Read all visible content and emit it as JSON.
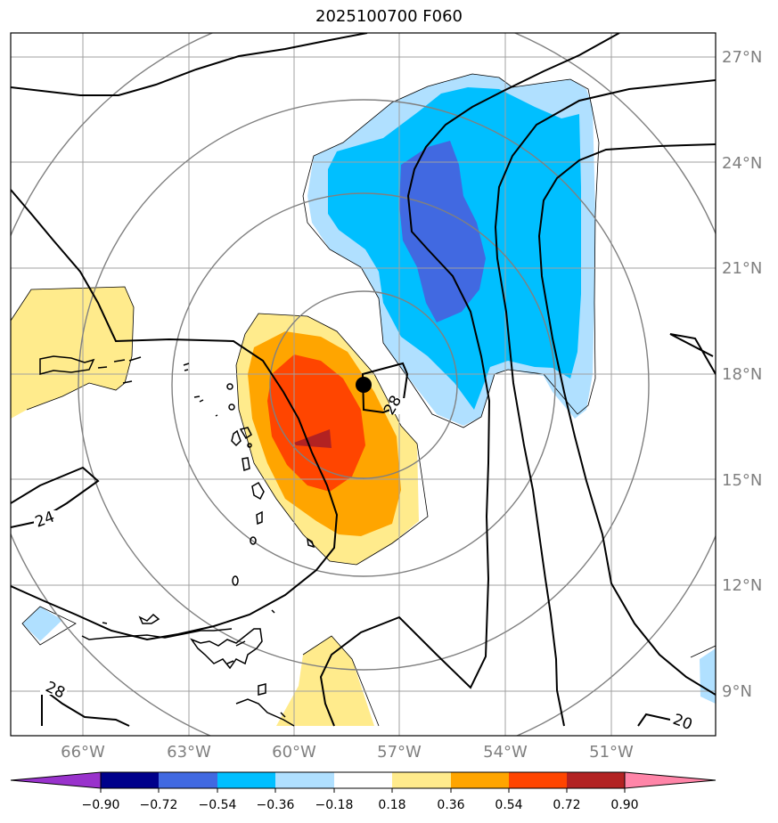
{
  "title": "2025100700 F060",
  "lon_labels": [
    "66°W",
    "63°W",
    "60°W",
    "57°W",
    "54°W",
    "51°W"
  ],
  "lat_labels": [
    "27°N",
    "24°N",
    "21°N",
    "18°N",
    "15°N",
    "12°N",
    "9°N"
  ],
  "contour_labels": [
    "28",
    "24",
    "28",
    "20"
  ],
  "colorbar": {
    "levels": [
      "−0.90",
      "−0.72",
      "−0.54",
      "−0.36",
      "−0.18",
      "0.18",
      "0.36",
      "0.54",
      "0.72",
      "0.90"
    ],
    "colors": [
      "#9932cc",
      "#00008b",
      "#4169e1",
      "#00bfff",
      "#b0e0ff",
      "#ffffff",
      "#ffeb8c",
      "#ffa500",
      "#ff4500",
      "#b22222",
      "#ff85a8"
    ]
  },
  "storm_center": {
    "lon": -58.0,
    "lat": 17.7
  },
  "fill_colors": {
    "light_yellow": "#ffeb8c",
    "orange": "#ffa500",
    "red_orange": "#ff4500",
    "dark_red": "#b22222",
    "light_blue": "#b0e0ff",
    "blue": "#00bfff",
    "royal_blue": "#4169e1"
  }
}
